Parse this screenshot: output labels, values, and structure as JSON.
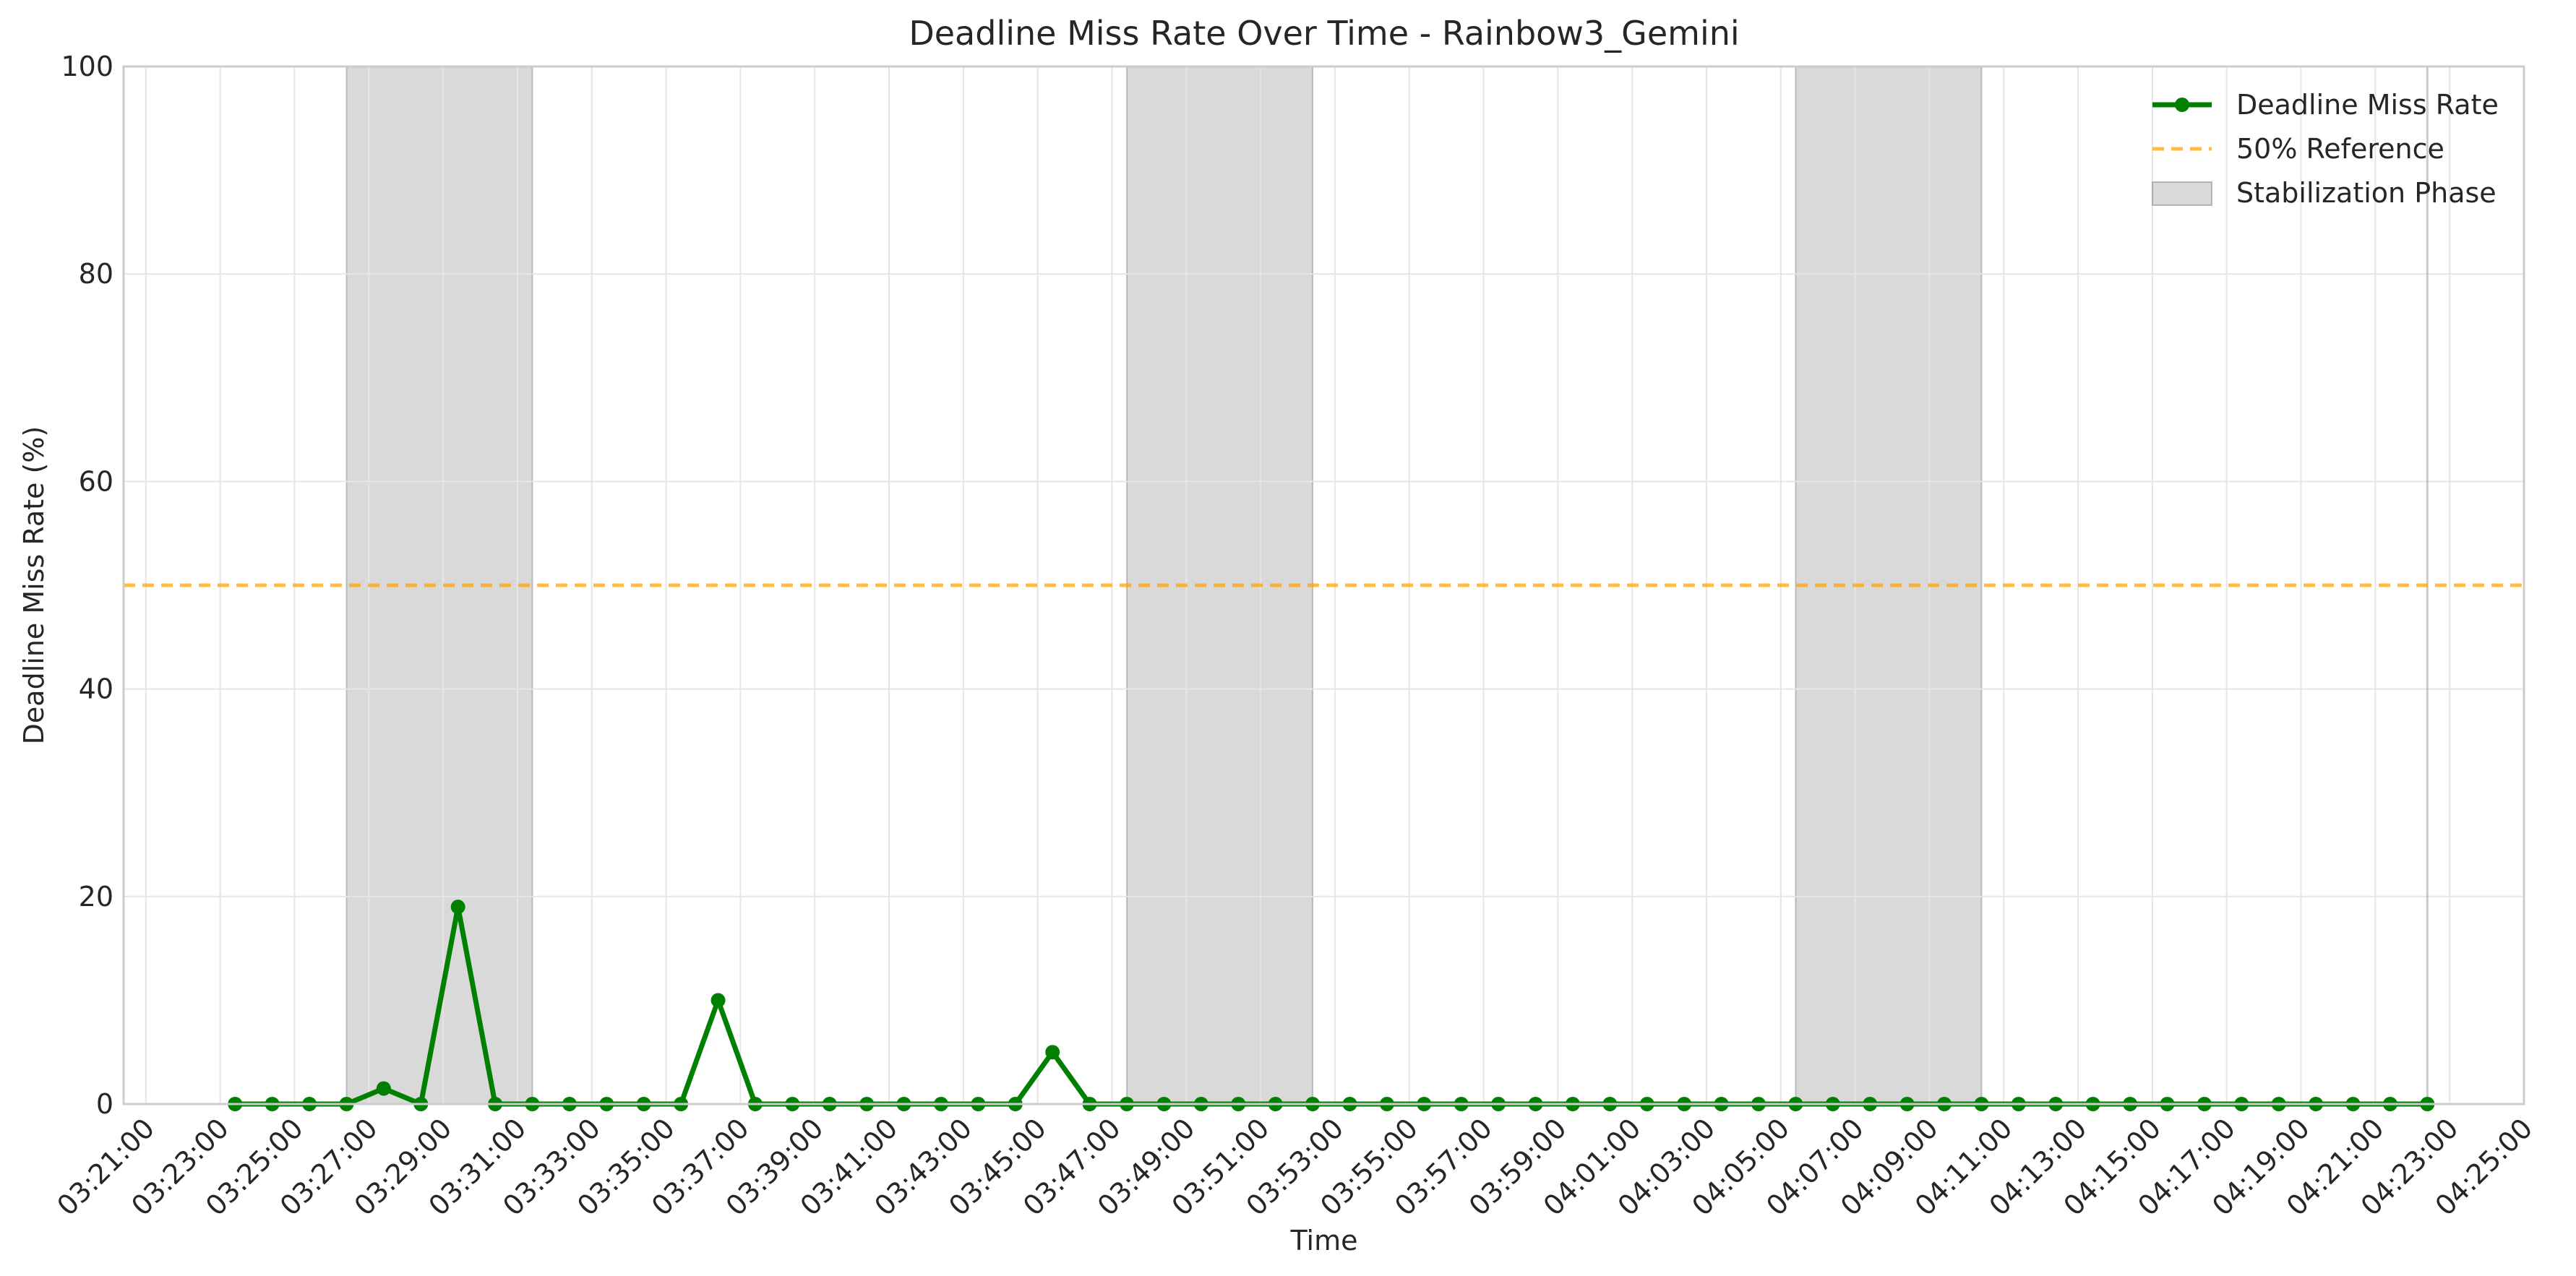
{
  "chart_data": {
    "type": "line",
    "title": "Deadline Miss Rate Over Time - Rainbow3_Gemini",
    "xlabel": "Time",
    "ylabel": "Deadline Miss Rate (%)",
    "ylim": [
      0,
      100
    ],
    "yticks": [
      0,
      20,
      40,
      60,
      80,
      100
    ],
    "xlim": [
      "03:20:24",
      "04:25:00"
    ],
    "xticks": [
      "03:21:00",
      "03:23:00",
      "03:25:00",
      "03:27:00",
      "03:29:00",
      "03:31:00",
      "03:33:00",
      "03:35:00",
      "03:37:00",
      "03:39:00",
      "03:41:00",
      "03:43:00",
      "03:45:00",
      "03:47:00",
      "03:49:00",
      "03:51:00",
      "03:53:00",
      "03:55:00",
      "03:57:00",
      "03:59:00",
      "04:01:00",
      "04:03:00",
      "04:05:00",
      "04:07:00",
      "04:09:00",
      "04:11:00",
      "04:13:00",
      "04:15:00",
      "04:17:00",
      "04:19:00",
      "04:21:00",
      "04:23:00",
      "04:25:00"
    ],
    "grid": true,
    "legend_position": "top-right",
    "series": [
      {
        "name": "Deadline Miss Rate",
        "color": "#008000",
        "x": [
          "03:23:24",
          "03:24:24",
          "03:25:24",
          "03:26:24",
          "03:27:24",
          "03:28:24",
          "03:29:24",
          "03:30:24",
          "03:31:24",
          "03:32:24",
          "03:33:24",
          "03:34:24",
          "03:35:24",
          "03:36:24",
          "03:37:24",
          "03:38:24",
          "03:39:24",
          "03:40:24",
          "03:41:24",
          "03:42:24",
          "03:43:24",
          "03:44:24",
          "03:45:24",
          "03:46:24",
          "03:47:24",
          "03:48:24",
          "03:49:24",
          "03:50:24",
          "03:51:24",
          "03:52:24",
          "03:53:24",
          "03:54:24",
          "03:55:24",
          "03:56:24",
          "03:57:24",
          "03:58:24",
          "03:59:24",
          "04:00:24",
          "04:01:24",
          "04:02:24",
          "04:03:24",
          "04:04:24",
          "04:05:24",
          "04:06:24",
          "04:07:24",
          "04:08:24",
          "04:09:24",
          "04:10:24",
          "04:11:24",
          "04:12:24",
          "04:13:24",
          "04:14:24",
          "04:15:24",
          "04:16:24",
          "04:17:24",
          "04:18:24",
          "04:19:24",
          "04:20:24",
          "04:21:24",
          "04:22:24"
        ],
        "values": [
          0,
          0,
          0,
          0,
          1.5,
          0,
          19,
          0,
          0,
          0,
          0,
          0,
          0,
          10,
          0,
          0,
          0,
          0,
          0,
          0,
          0,
          0,
          5,
          0,
          0,
          0,
          0,
          0,
          0,
          0,
          0,
          0,
          0,
          0,
          0,
          0,
          0,
          0,
          0,
          0,
          0,
          0,
          0,
          0,
          0,
          0,
          0,
          0,
          0,
          0,
          0,
          0,
          0,
          0,
          0,
          0,
          0,
          0,
          0,
          0
        ]
      }
    ],
    "reference_line": {
      "name": "50% Reference",
      "value": 50,
      "color": "#FFA500"
    },
    "shaded_regions": {
      "name": "Stabilization Phase",
      "color": "#808080",
      "ranges": [
        [
          "03:26:24",
          "03:31:24"
        ],
        [
          "03:47:24",
          "03:52:24"
        ],
        [
          "04:05:24",
          "04:10:24"
        ]
      ]
    },
    "vertical_marker": {
      "x": "04:22:24",
      "color": "#808080"
    }
  }
}
